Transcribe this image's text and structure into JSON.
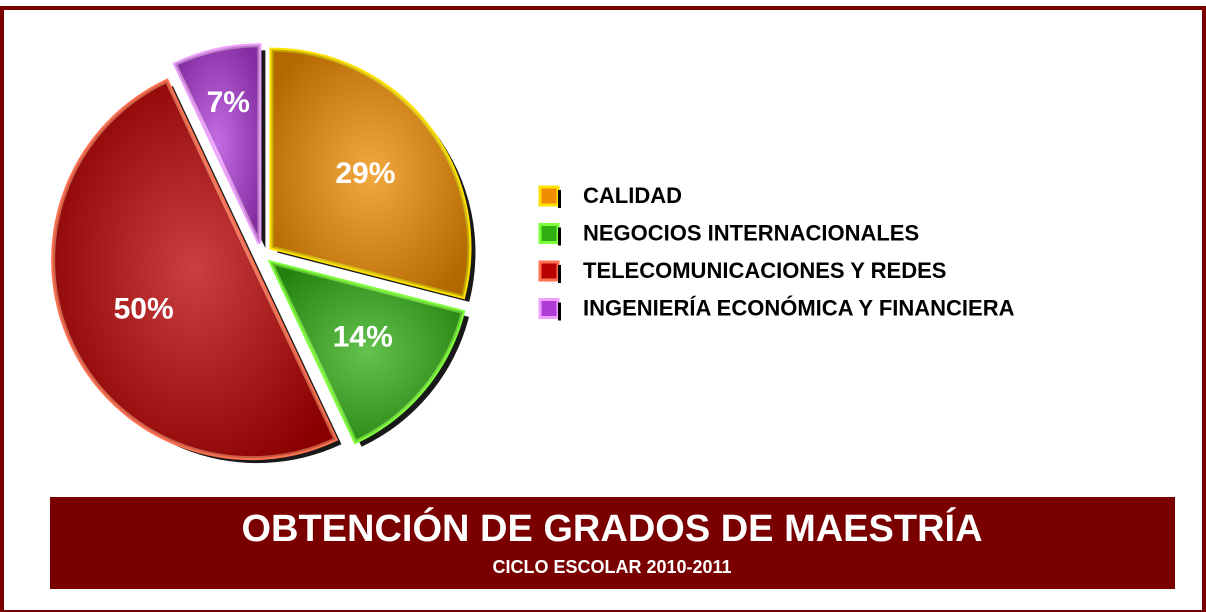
{
  "chart_data": {
    "type": "pie",
    "title": "OBTENCIÓN DE GRADOS DE MAESTRÍA",
    "subtitle": "CICLO ESCOLAR 2010-2011",
    "categories": [
      "CALIDAD",
      "NEGOCIOS INTERNACIONALES",
      "TELECOMUNICACIONES Y REDES",
      "INGENIERÍA ECONÓMICA Y FINANCIERA"
    ],
    "values": [
      29,
      14,
      50,
      7
    ],
    "value_labels": [
      "29%",
      "14%",
      "50%",
      "7%"
    ],
    "colors": [
      "#f08c00",
      "#2fae12",
      "#b80000",
      "#b03cd8"
    ],
    "edge_colors": [
      "#ffe000",
      "#7dff3a",
      "#ff7050",
      "#f0a0ff"
    ],
    "legend": "right"
  }
}
